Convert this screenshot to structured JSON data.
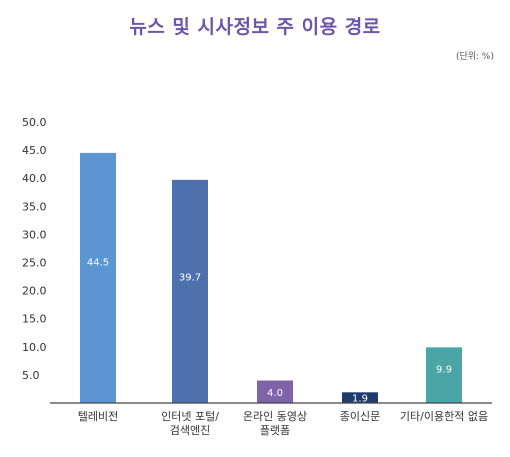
{
  "chart_data": {
    "type": "bar",
    "title": "뉴스 및 시사정보 주 이용 경로",
    "unit_note": "(단위: %)",
    "categories": [
      [
        "텔레비전"
      ],
      [
        "인터넷 포털/",
        "검색엔진"
      ],
      [
        "온라인 동영상",
        "플랫폼"
      ],
      [
        "종이신문"
      ],
      [
        "기타/이용한적 없음"
      ]
    ],
    "values": [
      44.5,
      39.7,
      4.0,
      1.9,
      9.9
    ],
    "value_labels": [
      "44.5",
      "39.7",
      "4.0",
      "1.9",
      "9.9"
    ],
    "colors": [
      "#5b96d2",
      "#4e71ad",
      "#7e63a8",
      "#1f3a6b",
      "#4aa6a6"
    ],
    "ylim": [
      0,
      50
    ],
    "yticks": [
      "50.0",
      "45.0",
      "40.0",
      "35.0",
      "30.0",
      "25.0",
      "20.0",
      "15.0",
      "10.0",
      "5.0"
    ],
    "ytick_values": [
      50,
      45,
      40,
      35,
      30,
      25,
      20,
      15,
      10,
      5
    ],
    "grid": false
  }
}
